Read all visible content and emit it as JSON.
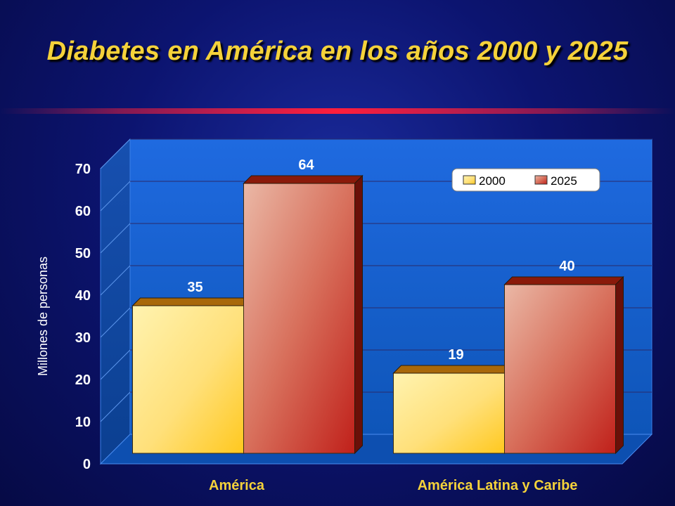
{
  "slide": {
    "title": "Diabetes en América en los años 2000 y 2025",
    "colors": {
      "title": "#f5d23a",
      "background": "#0c1470",
      "divider": "#ff1e3c",
      "plot_wall": "#1a64d2"
    }
  },
  "chart_data": {
    "type": "bar",
    "categories": [
      "América",
      "América Latina y Caribe"
    ],
    "series": [
      {
        "name": "2000",
        "values": [
          35,
          19
        ],
        "color": "#ffd54a"
      },
      {
        "name": "2025",
        "values": [
          64,
          40
        ],
        "color": "#d8604a"
      }
    ],
    "ylabel": "Millones de personas",
    "xlabel": "",
    "ylim": [
      0,
      70
    ],
    "yticks": [
      0,
      10,
      20,
      30,
      40,
      50,
      60,
      70
    ],
    "data_labels": true,
    "grid": true,
    "legend": "top-right",
    "style": "3d-clustered-bar"
  }
}
